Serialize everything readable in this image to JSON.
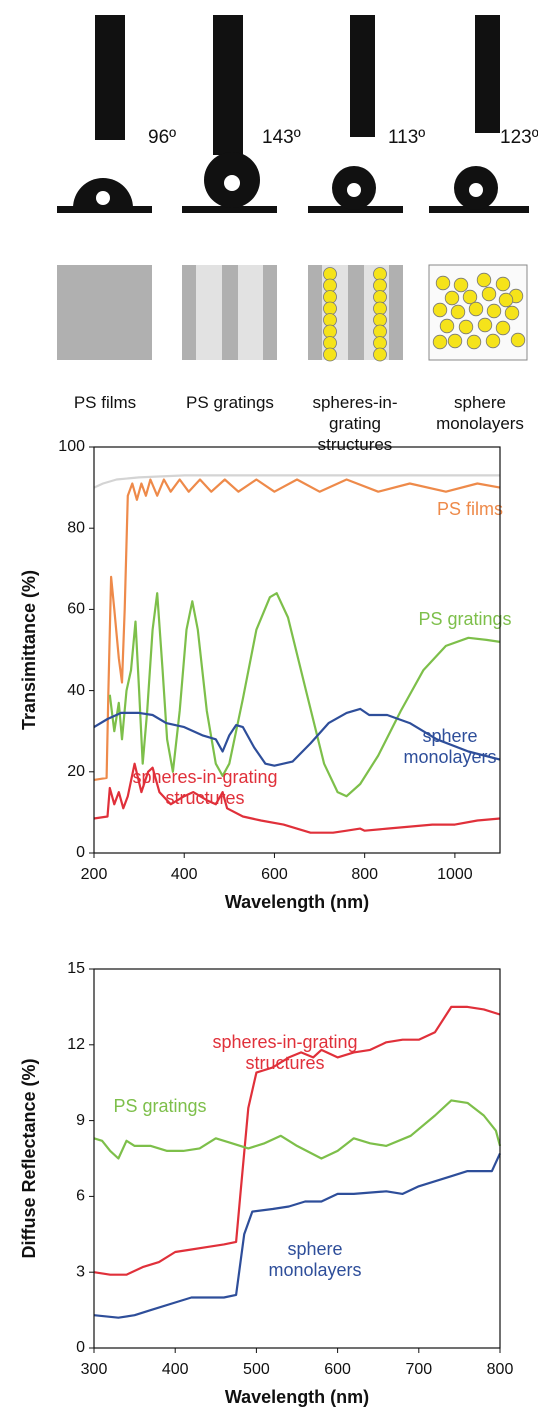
{
  "panel": {
    "contact_angles": [
      "96º",
      "143º",
      "113º",
      "123º"
    ],
    "structures": [
      "PS films",
      "PS gratings",
      "spheres-in-grating structures",
      "sphere monolayers"
    ]
  },
  "chart_data": [
    {
      "type": "line",
      "x_label": "Wavelength (nm)",
      "y_label": "Transimittance (%)",
      "xlim": [
        200,
        1100
      ],
      "ylim": [
        0,
        100
      ],
      "xticks": [
        200,
        400,
        600,
        800,
        1000
      ],
      "yticks": [
        0,
        20,
        40,
        60,
        80,
        100
      ],
      "series": [
        {
          "color": "#d4d4d4",
          "x": [
            200,
            220,
            250,
            300,
            400,
            600,
            800,
            1000,
            1100
          ],
          "values": [
            90,
            91,
            92,
            92.5,
            93,
            93,
            93,
            93,
            93
          ]
        },
        {
          "name": "PS films",
          "color": "#ee8a4a",
          "x": [
            200,
            228,
            232,
            238,
            245,
            255,
            262,
            268,
            275,
            285,
            295,
            305,
            315,
            325,
            340,
            355,
            370,
            390,
            410,
            435,
            460,
            490,
            520,
            560,
            600,
            650,
            700,
            760,
            830,
            900,
            980,
            1050,
            1100
          ],
          "values": [
            18,
            18.5,
            40,
            68,
            60,
            48,
            42,
            60,
            88,
            91,
            87,
            91,
            88,
            92,
            88,
            92,
            89,
            92,
            89,
            92,
            89,
            92,
            89,
            92,
            89,
            92,
            89,
            92,
            89,
            91,
            89,
            91,
            90
          ]
        },
        {
          "name": "PS gratings",
          "color": "#7dbf4a",
          "x": [
            235,
            245,
            255,
            262,
            272,
            282,
            292,
            300,
            308,
            318,
            330,
            340,
            352,
            362,
            375,
            390,
            405,
            418,
            430,
            450,
            470,
            485,
            500,
            530,
            560,
            590,
            605,
            630,
            670,
            710,
            740,
            760,
            790,
            830,
            880,
            930,
            980,
            1030,
            1070,
            1100
          ],
          "values": [
            39,
            30,
            37,
            28,
            40,
            45,
            57,
            40,
            22,
            35,
            55,
            64,
            45,
            28,
            20,
            35,
            55,
            62,
            55,
            35,
            22,
            19,
            22,
            38,
            55,
            63,
            64,
            58,
            40,
            22,
            15,
            14,
            17,
            24,
            35,
            45,
            51,
            53,
            52.5,
            52
          ]
        },
        {
          "name": "sphere monolayers",
          "color": "#2e4e9a",
          "x": [
            200,
            230,
            260,
            300,
            330,
            360,
            400,
            440,
            470,
            485,
            500,
            515,
            530,
            555,
            580,
            600,
            640,
            680,
            720,
            760,
            790,
            810,
            850,
            900,
            960,
            1030,
            1100
          ],
          "values": [
            31,
            33,
            34.5,
            34.5,
            34,
            32,
            31,
            29,
            28,
            25,
            29,
            31.5,
            31,
            26,
            22,
            21.5,
            22.5,
            27,
            32,
            34.5,
            35.5,
            34,
            34,
            32,
            28,
            25,
            23
          ]
        },
        {
          "name": "spheres-in-grating structures",
          "color": "#e0303a",
          "x": [
            200,
            230,
            235,
            245,
            255,
            265,
            275,
            290,
            305,
            320,
            330,
            345,
            370,
            400,
            420,
            450,
            470,
            485,
            495,
            530,
            570,
            620,
            680,
            730,
            760,
            790,
            800,
            850,
            900,
            950,
            1000,
            1050,
            1100
          ],
          "values": [
            8.5,
            9,
            16,
            12,
            15,
            11,
            14,
            22,
            15,
            20,
            21,
            15,
            12,
            14,
            15,
            13,
            12,
            15,
            11,
            9,
            8,
            7,
            5,
            5,
            5.5,
            6,
            5.5,
            6,
            6.5,
            7,
            7,
            8,
            8.5
          ]
        }
      ]
    },
    {
      "type": "line",
      "x_label": "Wavelength (nm)",
      "y_label": "Diffuse Reflectance (%)",
      "xlim": [
        300,
        800
      ],
      "ylim": [
        0,
        15
      ],
      "xticks": [
        300,
        400,
        500,
        600,
        700,
        800
      ],
      "yticks": [
        0,
        3,
        6,
        9,
        12,
        15
      ],
      "series": [
        {
          "name": "spheres-in-grating structures",
          "color": "#e0303a",
          "x": [
            300,
            320,
            340,
            360,
            380,
            400,
            420,
            440,
            460,
            475,
            480,
            490,
            500,
            520,
            540,
            555,
            570,
            580,
            600,
            620,
            640,
            660,
            680,
            700,
            720,
            740,
            760,
            780,
            800
          ],
          "values": [
            3,
            2.9,
            2.9,
            3.2,
            3.4,
            3.8,
            3.9,
            4.0,
            4.1,
            4.2,
            6,
            9.5,
            10.9,
            11.1,
            11.5,
            11.7,
            11.5,
            11.8,
            11.5,
            11.7,
            11.8,
            12.1,
            12.2,
            12.2,
            12.5,
            13.5,
            13.5,
            13.4,
            13.2
          ]
        },
        {
          "name": "PS gratings",
          "color": "#7dbf4a",
          "x": [
            300,
            310,
            320,
            330,
            340,
            350,
            370,
            390,
            410,
            430,
            450,
            470,
            490,
            510,
            530,
            550,
            580,
            600,
            620,
            640,
            660,
            690,
            720,
            740,
            760,
            780,
            795,
            800
          ],
          "values": [
            8.3,
            8.2,
            7.8,
            7.5,
            8.2,
            8.0,
            8.0,
            7.8,
            7.8,
            7.9,
            8.3,
            8.1,
            7.9,
            8.1,
            8.4,
            8.0,
            7.5,
            7.8,
            8.3,
            8.1,
            8.0,
            8.4,
            9.2,
            9.8,
            9.7,
            9.2,
            8.6,
            8
          ]
        },
        {
          "name": "sphere monolayers",
          "color": "#2e4e9a",
          "x": [
            300,
            330,
            350,
            370,
            400,
            420,
            440,
            460,
            475,
            485,
            495,
            520,
            540,
            560,
            580,
            600,
            620,
            660,
            680,
            700,
            740,
            760,
            790,
            800
          ],
          "values": [
            1.3,
            1.2,
            1.3,
            1.5,
            1.8,
            2.0,
            2.0,
            2.0,
            2.1,
            4.5,
            5.4,
            5.5,
            5.6,
            5.8,
            5.8,
            6.1,
            6.1,
            6.2,
            6.1,
            6.4,
            6.8,
            7.0,
            7.0,
            7.7
          ]
        }
      ]
    }
  ]
}
